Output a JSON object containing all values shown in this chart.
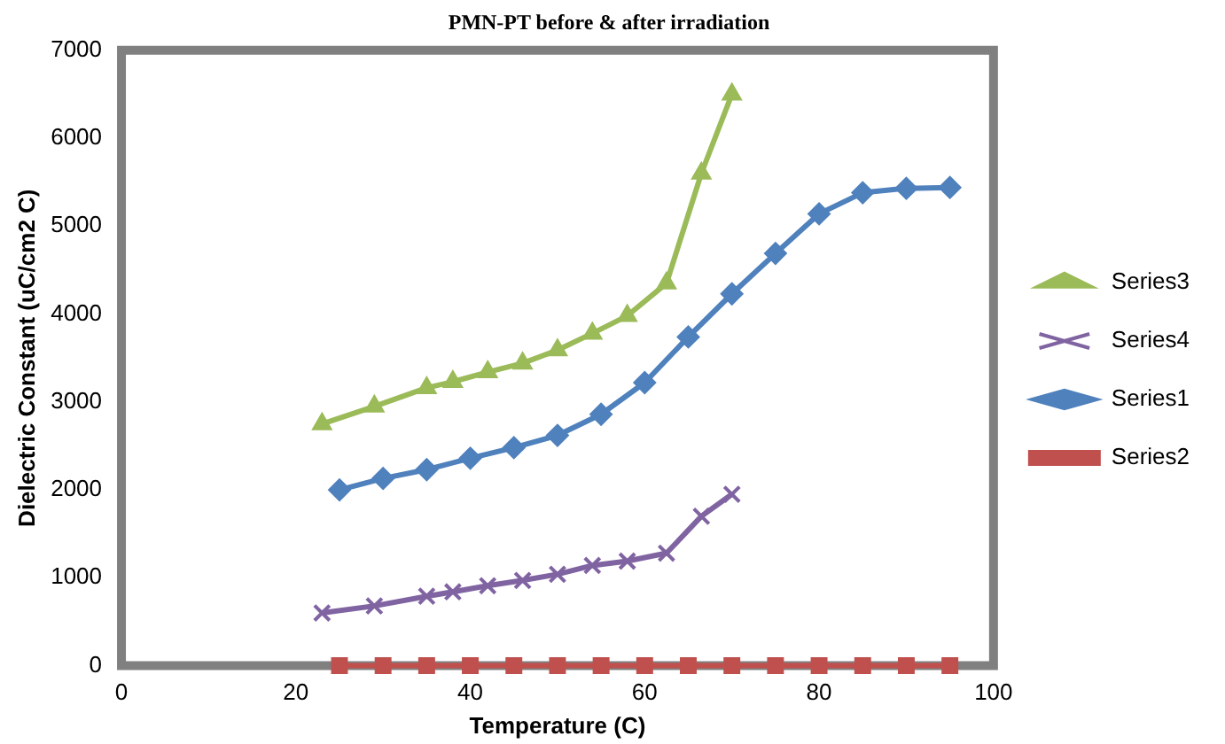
{
  "chart_data": {
    "type": "line",
    "title": "PMN-PT before & after irradiation",
    "xlabel": "Temperature (C)",
    "ylabel": "Dielectric Constant (uC/cm2 C)",
    "xlim": [
      0,
      100
    ],
    "xticks": [
      0,
      20,
      40,
      60,
      80,
      100
    ],
    "ylim": [
      0,
      7000
    ],
    "yticks": [
      0,
      1000,
      2000,
      3000,
      4000,
      5000,
      6000,
      7000
    ],
    "grid": false,
    "legend": "right",
    "series": [
      {
        "name": "Series3",
        "color": "#9bbb59",
        "marker": "triangle",
        "x": [
          23,
          29,
          35,
          38,
          42,
          46,
          50,
          54,
          58,
          62.5,
          66.5,
          70
        ],
        "values": [
          2750,
          2950,
          3160,
          3230,
          3340,
          3440,
          3590,
          3780,
          3980,
          4350,
          5600,
          6500
        ]
      },
      {
        "name": "Series4",
        "color": "#8064a2",
        "marker": "cross",
        "x": [
          23,
          29,
          35,
          38,
          42,
          46,
          50,
          54,
          58,
          62.5,
          66.5,
          70
        ],
        "values": [
          600,
          680,
          790,
          840,
          910,
          970,
          1040,
          1140,
          1190,
          1280,
          1700,
          1950
        ]
      },
      {
        "name": "Series1",
        "color": "#4f81bd",
        "marker": "diamond",
        "x": [
          25,
          30,
          35,
          40,
          45,
          50,
          55,
          60,
          65,
          70,
          75,
          80,
          85,
          90,
          95
        ],
        "values": [
          2000,
          2130,
          2230,
          2360,
          2480,
          2620,
          2860,
          3220,
          3740,
          4230,
          4690,
          5140,
          5380,
          5430,
          5440
        ]
      },
      {
        "name": "Series2",
        "color": "#c0504d",
        "marker": "square",
        "x": [
          25,
          30,
          35,
          40,
          45,
          50,
          55,
          60,
          65,
          70,
          75,
          80,
          85,
          90,
          95
        ],
        "values": [
          0,
          0,
          0,
          0,
          0,
          0,
          0,
          0,
          0,
          0,
          0,
          0,
          0,
          0,
          0
        ]
      }
    ]
  }
}
